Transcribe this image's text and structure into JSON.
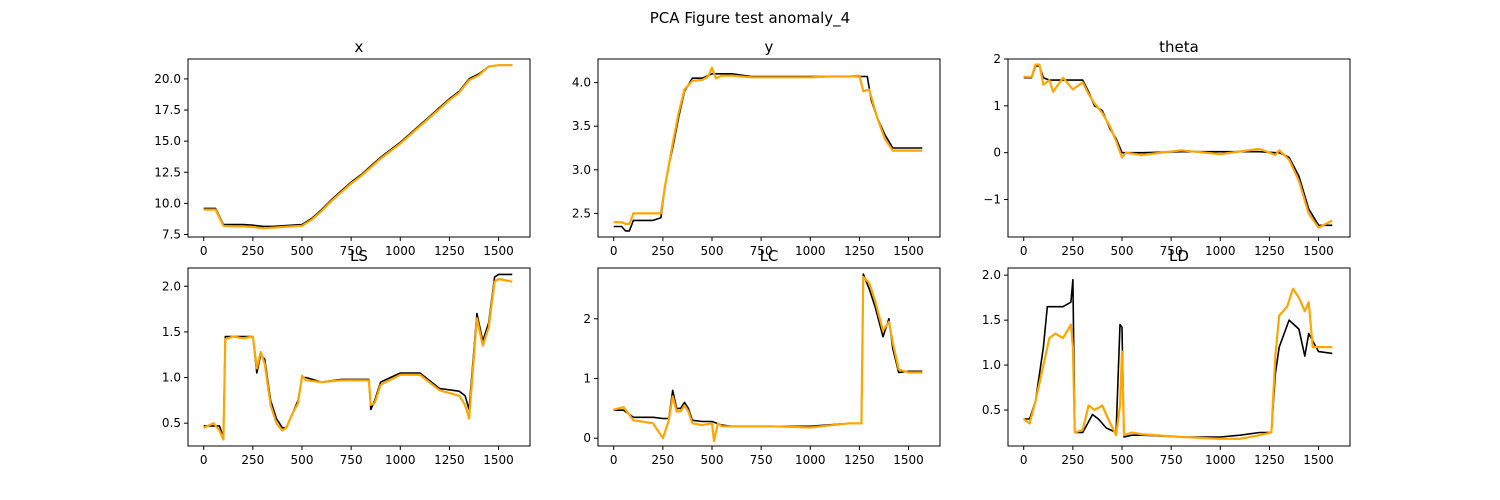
{
  "figure": {
    "title": "PCA Figure test anomaly_4"
  },
  "colors": {
    "actual": "#000000",
    "predicted": "#ffa500",
    "axis": "#000000",
    "background": "#ffffff"
  },
  "chart_data": [
    {
      "type": "line",
      "title": "x",
      "xlim": [
        -80,
        1660
      ],
      "ylim": [
        7.3,
        21.6
      ],
      "xticks": [
        0,
        250,
        500,
        750,
        1000,
        1250,
        1500
      ],
      "yticks": [
        7.5,
        10.0,
        12.5,
        15.0,
        17.5,
        20.0
      ],
      "ytick_labels": [
        "7.5",
        "10.0",
        "12.5",
        "15.0",
        "17.5",
        "20.0"
      ],
      "series": [
        {
          "x": [
            0,
            60,
            100,
            150,
            200,
            250,
            300,
            350,
            400,
            450,
            500,
            550,
            600,
            650,
            700,
            750,
            800,
            850,
            900,
            950,
            1000,
            1050,
            1100,
            1150,
            1200,
            1250,
            1300,
            1350,
            1400,
            1450,
            1500,
            1570
          ],
          "y": [
            9.6,
            9.6,
            8.3,
            8.3,
            8.3,
            8.25,
            8.15,
            8.15,
            8.2,
            8.25,
            8.3,
            8.8,
            9.5,
            10.3,
            11.0,
            11.7,
            12.3,
            13.0,
            13.7,
            14.3,
            14.9,
            15.6,
            16.3,
            17.0,
            17.7,
            18.4,
            19.0,
            20.0,
            20.4,
            21.0,
            21.1,
            21.1
          ]
        },
        {
          "x": [
            0,
            60,
            100,
            150,
            200,
            250,
            300,
            350,
            400,
            450,
            500,
            550,
            600,
            650,
            700,
            750,
            800,
            850,
            900,
            950,
            1000,
            1050,
            1100,
            1150,
            1200,
            1250,
            1300,
            1350,
            1400,
            1450,
            1500,
            1570
          ],
          "y": [
            9.5,
            9.5,
            8.2,
            8.15,
            8.15,
            8.1,
            8.0,
            8.05,
            8.1,
            8.15,
            8.2,
            8.7,
            9.4,
            10.2,
            10.9,
            11.6,
            12.2,
            12.9,
            13.6,
            14.2,
            14.8,
            15.5,
            16.2,
            16.9,
            17.6,
            18.3,
            18.9,
            19.9,
            20.3,
            21.0,
            21.1,
            21.1
          ]
        }
      ]
    },
    {
      "type": "line",
      "title": "y",
      "xlim": [
        -80,
        1660
      ],
      "ylim": [
        2.23,
        4.27
      ],
      "xticks": [
        0,
        250,
        500,
        750,
        1000,
        1250,
        1500
      ],
      "yticks": [
        2.5,
        3.0,
        3.5,
        4.0
      ],
      "ytick_labels": [
        "2.5",
        "3.0",
        "3.5",
        "4.0"
      ],
      "series": [
        {
          "x": [
            0,
            40,
            60,
            80,
            100,
            150,
            200,
            240,
            260,
            280,
            300,
            330,
            360,
            400,
            450,
            500,
            550,
            600,
            700,
            800,
            900,
            1000,
            1100,
            1200,
            1250,
            1290,
            1310,
            1340,
            1380,
            1420,
            1500,
            1570
          ],
          "y": [
            2.35,
            2.35,
            2.3,
            2.3,
            2.42,
            2.42,
            2.42,
            2.45,
            2.8,
            3.05,
            3.25,
            3.6,
            3.9,
            4.05,
            4.05,
            4.1,
            4.1,
            4.1,
            4.07,
            4.07,
            4.07,
            4.07,
            4.07,
            4.07,
            4.07,
            4.07,
            3.8,
            3.6,
            3.4,
            3.25,
            3.25,
            3.25
          ]
        },
        {
          "x": [
            0,
            40,
            60,
            80,
            100,
            150,
            200,
            240,
            260,
            280,
            300,
            330,
            360,
            400,
            450,
            480,
            500,
            520,
            550,
            600,
            700,
            800,
            900,
            1000,
            1100,
            1200,
            1250,
            1270,
            1300,
            1340,
            1380,
            1420,
            1500,
            1570
          ],
          "y": [
            2.4,
            2.4,
            2.38,
            2.38,
            2.5,
            2.5,
            2.5,
            2.5,
            2.8,
            3.05,
            3.3,
            3.65,
            3.92,
            4.02,
            4.03,
            4.07,
            4.17,
            4.05,
            4.08,
            4.08,
            4.06,
            4.06,
            4.06,
            4.06,
            4.07,
            4.07,
            4.08,
            3.9,
            3.92,
            3.6,
            3.35,
            3.22,
            3.22,
            3.22
          ]
        }
      ]
    },
    {
      "type": "line",
      "title": "theta",
      "xlim": [
        -80,
        1660
      ],
      "ylim": [
        -1.8,
        2.0
      ],
      "xticks": [
        0,
        250,
        500,
        750,
        1000,
        1250,
        1500
      ],
      "yticks": [
        -1,
        0,
        1,
        2
      ],
      "ytick_labels": [
        "−1",
        "0",
        "1",
        "2"
      ],
      "series": [
        {
          "x": [
            0,
            40,
            60,
            80,
            100,
            130,
            150,
            200,
            250,
            300,
            330,
            360,
            400,
            440,
            470,
            500,
            520,
            600,
            800,
            1000,
            1200,
            1280,
            1300,
            1350,
            1400,
            1450,
            1500,
            1570
          ],
          "y": [
            1.6,
            1.6,
            1.85,
            1.85,
            1.6,
            1.55,
            1.55,
            1.55,
            1.55,
            1.55,
            1.3,
            1.0,
            0.9,
            0.5,
            0.3,
            0.0,
            0.0,
            0.0,
            0.02,
            0.02,
            0.02,
            0.0,
            0.0,
            -0.1,
            -0.5,
            -1.2,
            -1.55,
            -1.55
          ]
        },
        {
          "x": [
            0,
            40,
            60,
            80,
            100,
            130,
            150,
            200,
            250,
            300,
            330,
            360,
            400,
            440,
            470,
            500,
            520,
            600,
            800,
            1000,
            1200,
            1280,
            1300,
            1350,
            1400,
            1450,
            1500,
            1570
          ],
          "y": [
            1.62,
            1.62,
            1.88,
            1.88,
            1.45,
            1.55,
            1.3,
            1.6,
            1.35,
            1.5,
            1.25,
            1.05,
            0.85,
            0.55,
            0.25,
            -0.1,
            0.0,
            -0.05,
            0.05,
            -0.03,
            0.08,
            -0.05,
            0.05,
            -0.15,
            -0.6,
            -1.3,
            -1.6,
            -1.45
          ]
        }
      ]
    },
    {
      "type": "line",
      "title": "LS",
      "xlim": [
        -80,
        1660
      ],
      "ylim": [
        0.25,
        2.2
      ],
      "xticks": [
        0,
        250,
        500,
        750,
        1000,
        1250,
        1500
      ],
      "yticks": [
        0.5,
        1.0,
        1.5,
        2.0
      ],
      "ytick_labels": [
        "0.5",
        "1.0",
        "1.5",
        "2.0"
      ],
      "series": [
        {
          "x": [
            0,
            50,
            80,
            100,
            110,
            150,
            200,
            250,
            270,
            290,
            310,
            340,
            370,
            400,
            420,
            450,
            480,
            500,
            520,
            600,
            700,
            800,
            840,
            850,
            870,
            900,
            1000,
            1100,
            1200,
            1300,
            1330,
            1350,
            1390,
            1420,
            1450,
            1480,
            1500,
            1570
          ],
          "y": [
            0.47,
            0.47,
            0.47,
            0.35,
            1.45,
            1.45,
            1.45,
            1.45,
            1.05,
            1.25,
            1.2,
            0.75,
            0.55,
            0.45,
            0.45,
            0.6,
            0.75,
            1.0,
            1.0,
            0.95,
            0.98,
            0.98,
            0.98,
            0.65,
            0.75,
            0.95,
            1.05,
            1.05,
            0.88,
            0.85,
            0.8,
            0.65,
            1.7,
            1.4,
            1.6,
            2.1,
            2.13,
            2.13
          ]
        },
        {
          "x": [
            0,
            50,
            80,
            100,
            110,
            150,
            200,
            250,
            270,
            290,
            310,
            340,
            370,
            400,
            420,
            450,
            480,
            500,
            520,
            600,
            700,
            800,
            840,
            850,
            870,
            900,
            1000,
            1100,
            1200,
            1300,
            1330,
            1350,
            1390,
            1420,
            1450,
            1480,
            1500,
            1570
          ],
          "y": [
            0.45,
            0.5,
            0.42,
            0.32,
            1.42,
            1.45,
            1.43,
            1.45,
            1.1,
            1.28,
            1.15,
            0.7,
            0.5,
            0.42,
            0.45,
            0.6,
            0.72,
            1.02,
            0.97,
            0.95,
            0.97,
            0.97,
            0.97,
            0.7,
            0.72,
            0.92,
            1.03,
            1.03,
            0.86,
            0.8,
            0.7,
            0.55,
            1.65,
            1.35,
            1.55,
            2.05,
            2.08,
            2.05
          ]
        }
      ]
    },
    {
      "type": "line",
      "title": "LC",
      "xlim": [
        -80,
        1660
      ],
      "ylim": [
        -0.13,
        2.85
      ],
      "xticks": [
        0,
        250,
        500,
        750,
        1000,
        1250,
        1500
      ],
      "yticks": [
        0,
        1,
        2
      ],
      "ytick_labels": [
        "0",
        "1",
        "2"
      ],
      "series": [
        {
          "x": [
            0,
            50,
            100,
            200,
            250,
            280,
            300,
            320,
            340,
            360,
            380,
            400,
            450,
            500,
            550,
            600,
            800,
            1000,
            1200,
            1260,
            1270,
            1300,
            1330,
            1370,
            1400,
            1420,
            1450,
            1500,
            1570
          ],
          "y": [
            0.47,
            0.47,
            0.35,
            0.35,
            0.33,
            0.33,
            0.8,
            0.5,
            0.5,
            0.6,
            0.5,
            0.3,
            0.28,
            0.28,
            0.22,
            0.2,
            0.2,
            0.2,
            0.25,
            0.25,
            2.75,
            2.5,
            2.2,
            1.7,
            2.0,
            1.5,
            1.1,
            1.12,
            1.12
          ]
        },
        {
          "x": [
            0,
            50,
            100,
            200,
            250,
            280,
            300,
            320,
            340,
            360,
            380,
            400,
            450,
            500,
            510,
            530,
            550,
            600,
            800,
            1000,
            1200,
            1260,
            1270,
            1300,
            1330,
            1370,
            1400,
            1420,
            1450,
            1500,
            1570
          ],
          "y": [
            0.48,
            0.52,
            0.3,
            0.25,
            0.0,
            0.3,
            0.7,
            0.45,
            0.45,
            0.55,
            0.45,
            0.25,
            0.22,
            0.25,
            -0.05,
            0.25,
            0.2,
            0.2,
            0.2,
            0.18,
            0.25,
            0.25,
            2.7,
            2.6,
            2.3,
            1.8,
            1.95,
            1.6,
            1.15,
            1.1,
            1.1
          ]
        }
      ]
    },
    {
      "type": "line",
      "title": "LD",
      "xlim": [
        -80,
        1660
      ],
      "ylim": [
        0.1,
        2.08
      ],
      "xticks": [
        0,
        250,
        500,
        750,
        1000,
        1250,
        1500
      ],
      "yticks": [
        0.5,
        1.0,
        1.5,
        2.0
      ],
      "ytick_labels": [
        "0.5",
        "1.0",
        "1.5",
        "2.0"
      ],
      "series": [
        {
          "x": [
            0,
            30,
            60,
            100,
            120,
            130,
            140,
            200,
            240,
            250,
            260,
            300,
            350,
            380,
            420,
            470,
            490,
            500,
            510,
            550,
            600,
            800,
            1000,
            1100,
            1200,
            1260,
            1280,
            1300,
            1350,
            1400,
            1430,
            1450,
            1500,
            1570
          ],
          "y": [
            0.4,
            0.4,
            0.6,
            1.2,
            1.65,
            1.65,
            1.65,
            1.65,
            1.7,
            1.95,
            0.25,
            0.25,
            0.45,
            0.4,
            0.3,
            0.25,
            1.45,
            1.42,
            0.2,
            0.22,
            0.22,
            0.2,
            0.2,
            0.22,
            0.25,
            0.25,
            0.9,
            1.2,
            1.5,
            1.4,
            1.1,
            1.35,
            1.15,
            1.13
          ]
        },
        {
          "x": [
            0,
            30,
            60,
            100,
            130,
            160,
            200,
            240,
            250,
            260,
            300,
            330,
            360,
            400,
            430,
            470,
            490,
            500,
            510,
            550,
            600,
            800,
            1000,
            1100,
            1200,
            1260,
            1280,
            1300,
            1340,
            1370,
            1400,
            1430,
            1450,
            1470,
            1500,
            1570
          ],
          "y": [
            0.4,
            0.35,
            0.6,
            1.0,
            1.3,
            1.35,
            1.3,
            1.45,
            1.2,
            0.25,
            0.28,
            0.55,
            0.5,
            0.55,
            0.4,
            0.22,
            0.55,
            1.15,
            0.22,
            0.25,
            0.23,
            0.2,
            0.18,
            0.18,
            0.22,
            0.25,
            1.1,
            1.55,
            1.65,
            1.85,
            1.75,
            1.6,
            1.7,
            1.2,
            1.2,
            1.2
          ]
        }
      ]
    }
  ]
}
